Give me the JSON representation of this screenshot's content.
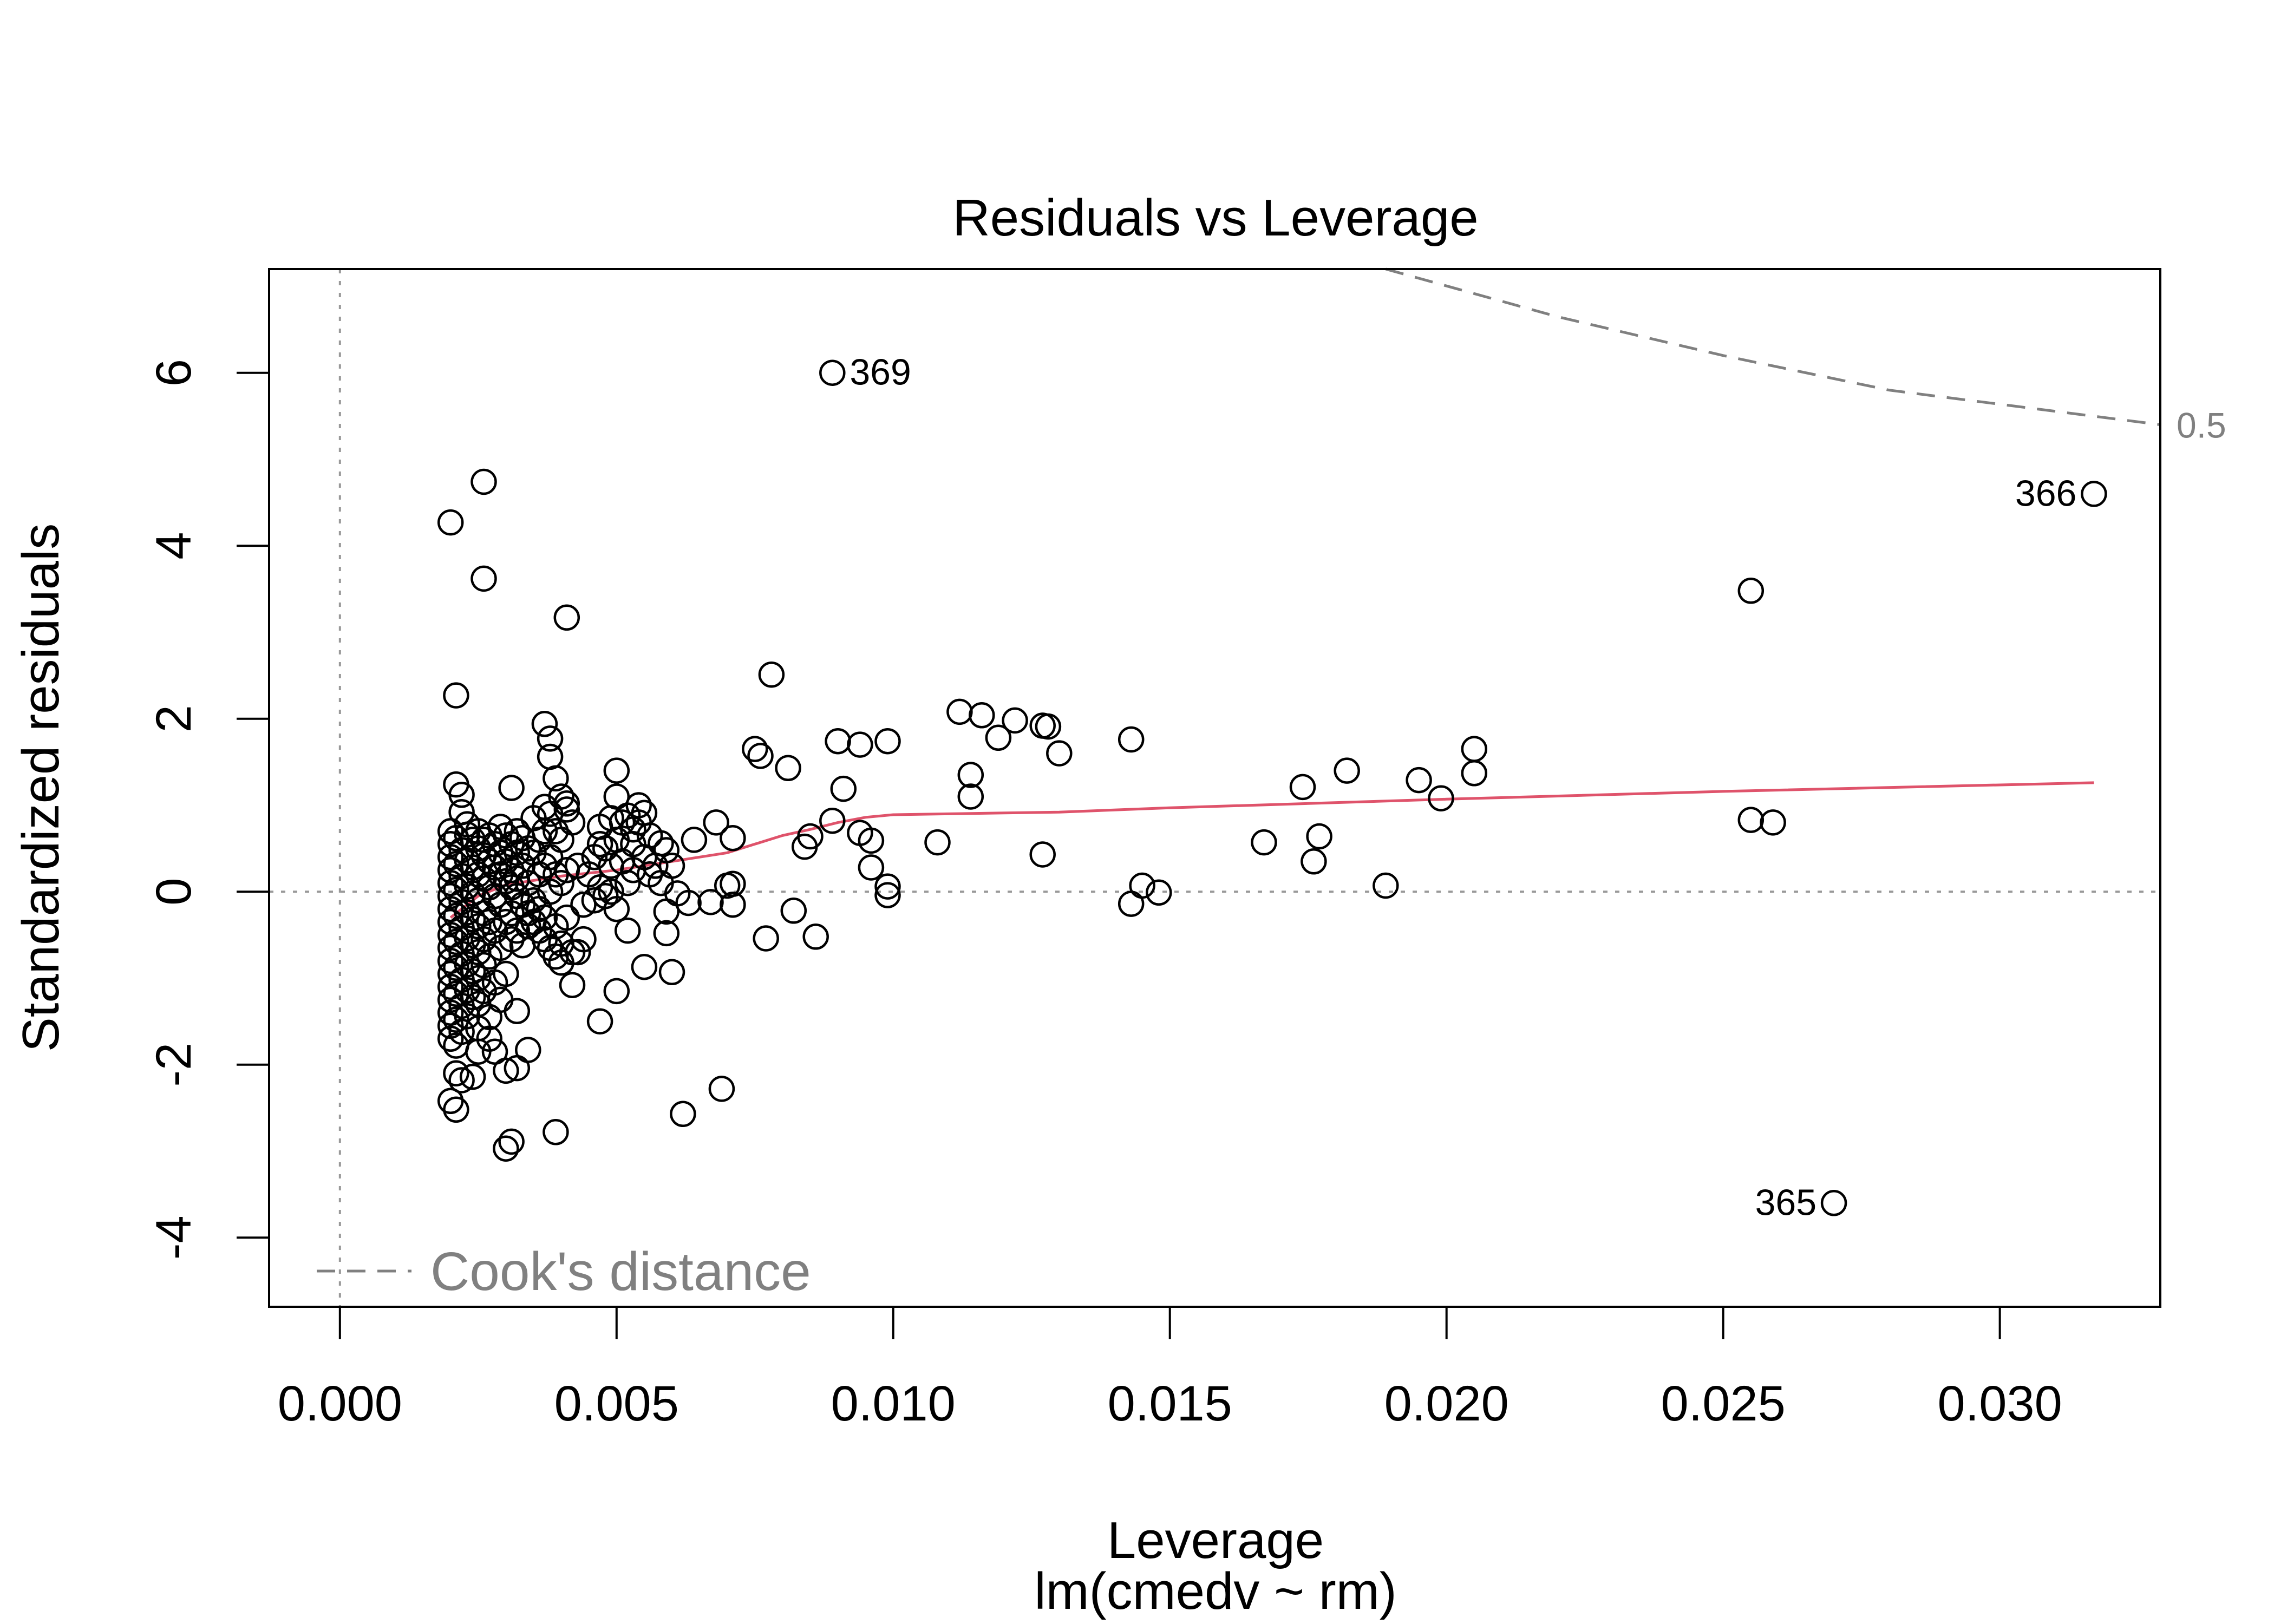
{
  "chart_data": {
    "type": "scatter",
    "title": "Residuals vs Leverage",
    "xlabel": "Leverage",
    "subtitle": "lm(cmedv ~ rm)",
    "ylabel": "Standardized residuals",
    "xlim": [
      -0.00128,
      0.0329
    ],
    "ylim": [
      -4.8,
      7.2
    ],
    "x_ticks": [
      0.0,
      0.005,
      0.01,
      0.015,
      0.02,
      0.025,
      0.03
    ],
    "x_tick_labels": [
      "0.000",
      "0.005",
      "0.010",
      "0.015",
      "0.020",
      "0.025",
      "0.030"
    ],
    "y_ticks": [
      -4,
      -2,
      0,
      2,
      4,
      6
    ],
    "y_tick_labels": [
      "-4",
      "-2",
      "0",
      "2",
      "4",
      "6"
    ],
    "reference_lines": {
      "vertical_x": 0,
      "horizontal_y": 0,
      "style": "dotted",
      "color": "#999999"
    },
    "legend": {
      "label": "Cook's distance",
      "placement": "bottom-left"
    },
    "cook_contour": {
      "level_label": "0.5",
      "color": "#808080",
      "points": [
        [
          0.0189,
          7.2
        ],
        [
          0.022,
          6.65
        ],
        [
          0.025,
          6.2
        ],
        [
          0.028,
          5.8
        ],
        [
          0.0329,
          5.4
        ]
      ]
    },
    "labeled_points": [
      {
        "label": "369",
        "x": 0.0089,
        "y": 6.0,
        "side": "right"
      },
      {
        "label": "366",
        "x": 0.0317,
        "y": 4.6,
        "side": "left"
      },
      {
        "label": "365",
        "x": 0.027,
        "y": -3.6,
        "side": "left"
      }
    ],
    "smoother": {
      "name": "loess",
      "color": "#DF536B",
      "x": [
        0.002,
        0.0025,
        0.003,
        0.004,
        0.005,
        0.006,
        0.007,
        0.0075,
        0.008,
        0.0085,
        0.009,
        0.0095,
        0.01,
        0.011,
        0.012,
        0.013,
        0.015,
        0.0175,
        0.02,
        0.025,
        0.0317
      ],
      "y": [
        -0.3,
        -0.05,
        0.08,
        0.18,
        0.25,
        0.35,
        0.45,
        0.55,
        0.65,
        0.72,
        0.8,
        0.86,
        0.89,
        0.9,
        0.91,
        0.92,
        0.97,
        1.02,
        1.07,
        1.16,
        1.26
      ]
    },
    "series": [
      {
        "marker": "open-circle",
        "points": [
          [
            0.0089,
            6.0
          ],
          [
            0.0317,
            4.6
          ],
          [
            0.027,
            -3.6
          ],
          [
            0.0026,
            4.74
          ],
          [
            0.002,
            4.27
          ],
          [
            0.0026,
            3.62
          ],
          [
            0.0041,
            3.17
          ],
          [
            0.0255,
            3.48
          ],
          [
            0.0021,
            2.27
          ],
          [
            0.0078,
            2.51
          ],
          [
            0.0037,
            1.94
          ],
          [
            0.0038,
            1.77
          ],
          [
            0.0038,
            1.56
          ],
          [
            0.0039,
            1.31
          ],
          [
            0.004,
            1.1
          ],
          [
            0.0041,
            1.02
          ],
          [
            0.0031,
            1.2
          ],
          [
            0.0021,
            1.24
          ],
          [
            0.0022,
            1.12
          ],
          [
            0.0037,
            0.98
          ],
          [
            0.005,
            1.4
          ],
          [
            0.005,
            1.1
          ],
          [
            0.0052,
            0.88
          ],
          [
            0.0054,
            1.0
          ],
          [
            0.0055,
            0.91
          ],
          [
            0.0049,
            0.85
          ],
          [
            0.0053,
            0.72
          ],
          [
            0.0056,
            0.65
          ],
          [
            0.0047,
            0.55
          ],
          [
            0.0058,
            0.56
          ],
          [
            0.0059,
            0.48
          ],
          [
            0.006,
            0.3
          ],
          [
            0.0064,
            0.6
          ],
          [
            0.0068,
            0.8
          ],
          [
            0.0071,
            0.62
          ],
          [
            0.0071,
            0.09
          ],
          [
            0.007,
            0.07
          ],
          [
            0.0061,
            -0.02
          ],
          [
            0.0063,
            -0.13
          ],
          [
            0.0067,
            -0.12
          ],
          [
            0.0071,
            -0.15
          ],
          [
            0.0059,
            -0.23
          ],
          [
            0.0059,
            -0.48
          ],
          [
            0.0052,
            -0.45
          ],
          [
            0.0055,
            -0.87
          ],
          [
            0.006,
            -0.93
          ],
          [
            0.005,
            -1.15
          ],
          [
            0.0047,
            -1.5
          ],
          [
            0.0042,
            -1.08
          ],
          [
            0.004,
            -0.82
          ],
          [
            0.0043,
            -0.7
          ],
          [
            0.0044,
            -0.55
          ],
          [
            0.0034,
            -1.83
          ],
          [
            0.0032,
            -1.38
          ],
          [
            0.0029,
            -1.25
          ],
          [
            0.003,
            -2.07
          ],
          [
            0.0032,
            -2.04
          ],
          [
            0.0028,
            -1.85
          ],
          [
            0.0039,
            -2.78
          ],
          [
            0.0031,
            -2.89
          ],
          [
            0.003,
            -2.97
          ],
          [
            0.0021,
            -2.52
          ],
          [
            0.002,
            -2.42
          ],
          [
            0.0022,
            -2.18
          ],
          [
            0.0021,
            -2.1
          ],
          [
            0.0024,
            -2.14
          ],
          [
            0.0025,
            -1.85
          ],
          [
            0.0027,
            -1.7
          ],
          [
            0.0025,
            -1.58
          ],
          [
            0.0069,
            -2.28
          ],
          [
            0.0062,
            -2.57
          ],
          [
            0.0077,
            -0.54
          ],
          [
            0.0082,
            -0.22
          ],
          [
            0.0086,
            -0.52
          ],
          [
            0.0075,
            1.65
          ],
          [
            0.0076,
            1.57
          ],
          [
            0.0081,
            1.43
          ],
          [
            0.009,
            1.74
          ],
          [
            0.0094,
            1.7
          ],
          [
            0.0099,
            1.74
          ],
          [
            0.0091,
            1.19
          ],
          [
            0.0085,
            0.64
          ],
          [
            0.0084,
            0.52
          ],
          [
            0.0089,
            0.82
          ],
          [
            0.0094,
            0.68
          ],
          [
            0.0096,
            0.59
          ],
          [
            0.0096,
            0.28
          ],
          [
            0.0099,
            0.06
          ],
          [
            0.0099,
            -0.04
          ],
          [
            0.0108,
            0.57
          ],
          [
            0.0112,
            2.08
          ],
          [
            0.0116,
            2.04
          ],
          [
            0.0119,
            1.78
          ],
          [
            0.0122,
            1.98
          ],
          [
            0.0127,
            1.92
          ],
          [
            0.0128,
            1.91
          ],
          [
            0.013,
            1.6
          ],
          [
            0.0114,
            1.35
          ],
          [
            0.0114,
            1.1
          ],
          [
            0.0127,
            0.43
          ],
          [
            0.0143,
            1.76
          ],
          [
            0.0143,
            -0.14
          ],
          [
            0.0145,
            0.07
          ],
          [
            0.0148,
            -0.01
          ],
          [
            0.0167,
            0.57
          ],
          [
            0.0174,
            1.21
          ],
          [
            0.0176,
            0.35
          ],
          [
            0.0177,
            0.64
          ],
          [
            0.0182,
            1.4
          ],
          [
            0.0189,
            0.07
          ],
          [
            0.0195,
            1.29
          ],
          [
            0.0199,
            1.08
          ],
          [
            0.0205,
            1.65
          ],
          [
            0.0205,
            1.37
          ],
          [
            0.0255,
            0.83
          ],
          [
            0.0259,
            0.8
          ],
          [
            0.0022,
            0.92
          ],
          [
            0.0023,
            0.78
          ],
          [
            0.0024,
            0.6
          ],
          [
            0.0025,
            0.5
          ],
          [
            0.0026,
            0.42
          ],
          [
            0.0027,
            0.35
          ],
          [
            0.0028,
            0.28
          ],
          [
            0.0029,
            0.2
          ],
          [
            0.003,
            0.12
          ],
          [
            0.0031,
            0.05
          ],
          [
            0.0032,
            -0.05
          ],
          [
            0.0033,
            -0.15
          ],
          [
            0.0034,
            -0.25
          ],
          [
            0.0035,
            -0.35
          ],
          [
            0.0036,
            -0.45
          ],
          [
            0.0037,
            -0.55
          ],
          [
            0.0038,
            -0.65
          ],
          [
            0.0039,
            -0.75
          ],
          [
            0.002,
            0.7
          ],
          [
            0.002,
            0.55
          ],
          [
            0.002,
            0.4
          ],
          [
            0.002,
            0.25
          ],
          [
            0.002,
            0.1
          ],
          [
            0.002,
            -0.05
          ],
          [
            0.002,
            -0.2
          ],
          [
            0.002,
            -0.35
          ],
          [
            0.002,
            -0.5
          ],
          [
            0.002,
            -0.65
          ],
          [
            0.002,
            -0.8
          ],
          [
            0.002,
            -0.95
          ],
          [
            0.002,
            -1.1
          ],
          [
            0.002,
            -1.25
          ],
          [
            0.002,
            -1.4
          ],
          [
            0.002,
            -1.55
          ],
          [
            0.002,
            -1.7
          ],
          [
            0.0021,
            0.62
          ],
          [
            0.0021,
            0.32
          ],
          [
            0.0021,
            0.02
          ],
          [
            0.0021,
            -0.28
          ],
          [
            0.0021,
            -0.58
          ],
          [
            0.0021,
            -0.88
          ],
          [
            0.0021,
            -1.18
          ],
          [
            0.0021,
            -1.48
          ],
          [
            0.0021,
            -1.78
          ],
          [
            0.0022,
            0.48
          ],
          [
            0.0022,
            0.18
          ],
          [
            0.0022,
            -0.12
          ],
          [
            0.0022,
            -0.42
          ],
          [
            0.0022,
            -0.72
          ],
          [
            0.0022,
            -1.02
          ],
          [
            0.0022,
            -1.32
          ],
          [
            0.0022,
            -1.62
          ],
          [
            0.0023,
            0.66
          ],
          [
            0.0023,
            0.36
          ],
          [
            0.0023,
            0.06
          ],
          [
            0.0023,
            -0.24
          ],
          [
            0.0023,
            -0.54
          ],
          [
            0.0023,
            -0.84
          ],
          [
            0.0023,
            -1.14
          ],
          [
            0.0023,
            -1.44
          ],
          [
            0.0024,
            0.28
          ],
          [
            0.0024,
            -0.02
          ],
          [
            0.0024,
            -0.32
          ],
          [
            0.0024,
            -0.62
          ],
          [
            0.0024,
            -0.92
          ],
          [
            0.0024,
            -1.22
          ],
          [
            0.0025,
            0.7
          ],
          [
            0.0025,
            0.2
          ],
          [
            0.0025,
            -0.1
          ],
          [
            0.0025,
            -0.4
          ],
          [
            0.0025,
            -0.7
          ],
          [
            0.0025,
            -1.0
          ],
          [
            0.0025,
            -1.3
          ],
          [
            0.0026,
            0.6
          ],
          [
            0.0026,
            0.15
          ],
          [
            0.0026,
            -0.25
          ],
          [
            0.0026,
            -0.55
          ],
          [
            0.0026,
            -0.85
          ],
          [
            0.0026,
            -1.15
          ],
          [
            0.0027,
            0.65
          ],
          [
            0.0027,
            0.05
          ],
          [
            0.0027,
            -0.35
          ],
          [
            0.0027,
            -0.75
          ],
          [
            0.0027,
            -1.45
          ],
          [
            0.0028,
            0.55
          ],
          [
            0.0028,
            -0.05
          ],
          [
            0.0028,
            -0.45
          ],
          [
            0.0028,
            -1.05
          ],
          [
            0.0029,
            0.75
          ],
          [
            0.0029,
            0.45
          ],
          [
            0.0029,
            -0.15
          ],
          [
            0.0029,
            -0.65
          ],
          [
            0.003,
            0.65
          ],
          [
            0.003,
            0.35
          ],
          [
            0.003,
            -0.35
          ],
          [
            0.003,
            -0.95
          ],
          [
            0.0031,
            0.55
          ],
          [
            0.0031,
            0.25
          ],
          [
            0.0031,
            -0.25
          ],
          [
            0.0031,
            -0.55
          ],
          [
            0.0032,
            0.7
          ],
          [
            0.0032,
            0.45
          ],
          [
            0.0032,
            0.15
          ],
          [
            0.0032,
            -0.45
          ],
          [
            0.0033,
            0.62
          ],
          [
            0.0033,
            0.3
          ],
          [
            0.0033,
            -0.62
          ],
          [
            0.0034,
            0.5
          ],
          [
            0.0034,
            0.1
          ],
          [
            0.0034,
            -0.4
          ],
          [
            0.0035,
            0.85
          ],
          [
            0.0035,
            0.45
          ],
          [
            0.0035,
            -0.1
          ],
          [
            0.0036,
            0.6
          ],
          [
            0.0036,
            0.2
          ],
          [
            0.0036,
            -0.2
          ],
          [
            0.0037,
            0.7
          ],
          [
            0.0037,
            0.3
          ],
          [
            0.0037,
            -0.3
          ],
          [
            0.0038,
            0.9
          ],
          [
            0.0038,
            0.4
          ],
          [
            0.0038,
            0.0
          ],
          [
            0.0039,
            0.7
          ],
          [
            0.0039,
            0.2
          ],
          [
            0.0039,
            -0.4
          ],
          [
            0.004,
            0.6
          ],
          [
            0.004,
            0.1
          ],
          [
            0.004,
            -0.6
          ],
          [
            0.0041,
            0.95
          ],
          [
            0.0041,
            0.25
          ],
          [
            0.0041,
            -0.3
          ],
          [
            0.0042,
            0.8
          ],
          [
            0.0042,
            -0.7
          ],
          [
            0.0043,
            0.3
          ],
          [
            0.0044,
            -0.15
          ],
          [
            0.0045,
            0.2
          ],
          [
            0.0046,
            0.4
          ],
          [
            0.0046,
            -0.1
          ],
          [
            0.0047,
            0.05
          ],
          [
            0.0047,
            0.75
          ],
          [
            0.0048,
            0.5
          ],
          [
            0.0048,
            -0.05
          ],
          [
            0.0049,
            0.0
          ],
          [
            0.0049,
            0.3
          ],
          [
            0.005,
            0.6
          ],
          [
            0.005,
            -0.2
          ],
          [
            0.0051,
            0.8
          ],
          [
            0.0051,
            0.35
          ],
          [
            0.0052,
            0.1
          ],
          [
            0.0053,
            0.55
          ],
          [
            0.0053,
            0.25
          ],
          [
            0.0054,
            0.8
          ],
          [
            0.0055,
            0.4
          ],
          [
            0.0056,
            0.2
          ],
          [
            0.0057,
            0.3
          ],
          [
            0.0058,
            0.1
          ]
        ]
      }
    ]
  }
}
